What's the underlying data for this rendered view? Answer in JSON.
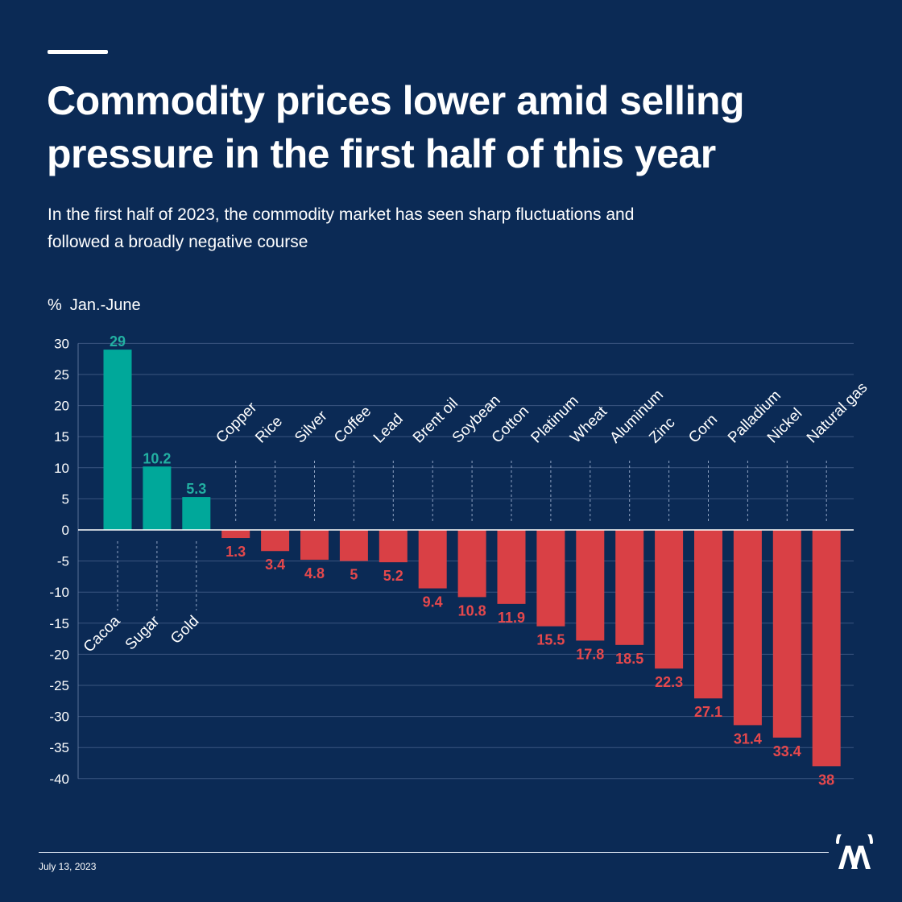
{
  "header": {
    "title": "Commodity prices lower amid selling pressure in the first half of this year",
    "subtitle": "In the first half of 2023, the commodity market has seen sharp fluctuations and followed a broadly negative course"
  },
  "colors": {
    "background": "#0b2a55",
    "positive": "#00a89a",
    "negative": "#d94045",
    "positive_label": "#22b0a2",
    "negative_label": "#e5484c"
  },
  "chart_data": {
    "type": "bar",
    "title": "Commodity prices lower amid selling pressure in the first half of this year",
    "unit_symbol": "%",
    "period": "Jan.-June",
    "ylim": [
      -40,
      30
    ],
    "yticks": [
      30,
      25,
      20,
      15,
      10,
      5,
      0,
      -5,
      -10,
      -15,
      -20,
      -25,
      -30,
      -35,
      -40
    ],
    "grid": true,
    "categories": [
      "Cacoa",
      "Sugar",
      "Gold",
      "Copper",
      "Rice",
      "Silver",
      "Coffee",
      "Lead",
      "Brent oil",
      "Soybean",
      "Cotton",
      "Platinum",
      "Wheat",
      "Aluminum",
      "Zinc",
      "Corn",
      "Palladium",
      "Nickel",
      "Natural gas"
    ],
    "values": [
      29,
      10.2,
      5.3,
      -1.3,
      -3.4,
      -4.8,
      -5,
      -5.2,
      -9.4,
      -10.8,
      -11.9,
      -15.5,
      -17.8,
      -18.5,
      -22.3,
      -27.1,
      -31.4,
      -33.4,
      -38
    ],
    "value_labels": [
      "29",
      "10.2",
      "5.3",
      "1.3",
      "3.4",
      "4.8",
      "5",
      "5.2",
      "9.4",
      "10.8",
      "11.9",
      "15.5",
      "17.8",
      "18.5",
      "22.3",
      "27.1",
      "31.4",
      "33.4",
      "38"
    ]
  },
  "footer": {
    "date": "July 13, 2023",
    "logo": "aa-logo"
  }
}
